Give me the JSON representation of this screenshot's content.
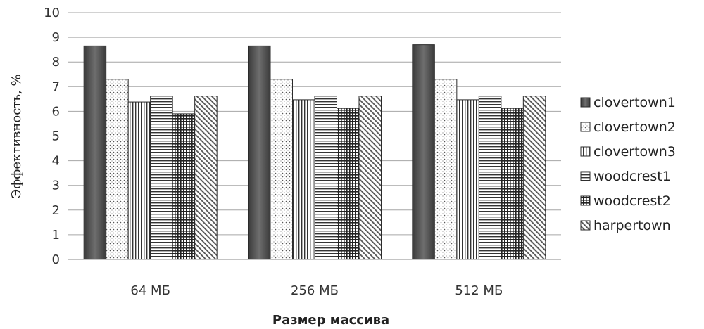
{
  "chart_data": {
    "type": "bar",
    "xlabel": "Размер массива",
    "ylabel": "Эффективность, %",
    "categories": [
      "64 МБ",
      "256 МБ",
      "512 МБ"
    ],
    "ylim": [
      0,
      10
    ],
    "yticks": [
      "0",
      "1",
      "2",
      "3",
      "4",
      "5",
      "6",
      "7",
      "8",
      "9",
      "10"
    ],
    "grid": true,
    "legend_position": "right",
    "series": [
      {
        "name": "clovertown1",
        "values": [
          8.65,
          8.65,
          8.7
        ],
        "pattern": "solid-dark"
      },
      {
        "name": "clovertown2",
        "values": [
          7.3,
          7.3,
          7.3
        ],
        "pattern": "dots"
      },
      {
        "name": "clovertown3",
        "values": [
          6.38,
          6.47,
          6.47
        ],
        "pattern": "vertical-lines"
      },
      {
        "name": "woodcrest1",
        "values": [
          6.62,
          6.62,
          6.62
        ],
        "pattern": "horizontal-lines"
      },
      {
        "name": "woodcrest2",
        "values": [
          5.9,
          6.12,
          6.12
        ],
        "pattern": "grid"
      },
      {
        "name": "harpertown",
        "values": [
          6.62,
          6.62,
          6.62
        ],
        "pattern": "diagonal-lines"
      }
    ]
  }
}
